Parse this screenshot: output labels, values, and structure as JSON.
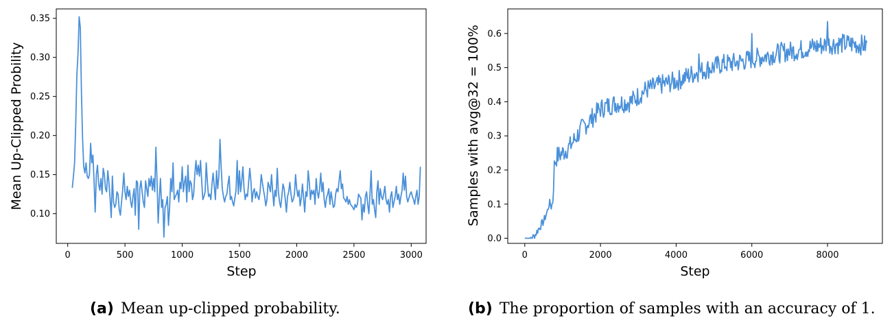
{
  "chart_data": [
    {
      "type": "line",
      "xlabel": "Step",
      "ylabel": "Mean Up-Clipped Probility",
      "xlim": [
        -100,
        3130
      ],
      "ylim": [
        0.062,
        0.362
      ],
      "xticks": [
        0,
        500,
        1000,
        1500,
        2000,
        2500,
        3000
      ],
      "yticks": [
        0.1,
        0.15,
        0.2,
        0.25,
        0.3,
        0.35
      ],
      "ytick_labels": [
        "0.10",
        "0.15",
        "0.20",
        "0.25",
        "0.30",
        "0.35"
      ],
      "series": [
        {
          "color": "#4a90d9",
          "x_start": 40,
          "x_step": 10,
          "y": [
            0.133,
            0.148,
            0.165,
            0.215,
            0.278,
            0.305,
            0.352,
            0.338,
            0.255,
            0.195,
            0.16,
            0.152,
            0.165,
            0.148,
            0.145,
            0.15,
            0.19,
            0.165,
            0.175,
            0.142,
            0.102,
            0.15,
            0.162,
            0.138,
            0.13,
            0.145,
            0.125,
            0.158,
            0.15,
            0.132,
            0.128,
            0.155,
            0.14,
            0.12,
            0.095,
            0.148,
            0.115,
            0.108,
            0.112,
            0.128,
            0.125,
            0.105,
            0.098,
            0.115,
            0.13,
            0.152,
            0.128,
            0.118,
            0.135,
            0.122,
            0.13,
            0.115,
            0.108,
            0.122,
            0.132,
            0.098,
            0.142,
            0.14,
            0.08,
            0.132,
            0.142,
            0.128,
            0.115,
            0.108,
            0.142,
            0.132,
            0.122,
            0.145,
            0.135,
            0.148,
            0.13,
            0.145,
            0.128,
            0.185,
            0.142,
            0.088,
            0.12,
            0.145,
            0.108,
            0.118,
            0.07,
            0.108,
            0.112,
            0.122,
            0.085,
            0.108,
            0.145,
            0.128,
            0.165,
            0.118,
            0.122,
            0.125,
            0.13,
            0.115,
            0.14,
            0.132,
            0.16,
            0.128,
            0.14,
            0.148,
            0.115,
            0.162,
            0.128,
            0.142,
            0.138,
            0.118,
            0.125,
            0.15,
            0.168,
            0.15,
            0.162,
            0.148,
            0.168,
            0.142,
            0.118,
            0.122,
            0.128,
            0.165,
            0.14,
            0.122,
            0.125,
            0.118,
            0.138,
            0.152,
            0.135,
            0.118,
            0.155,
            0.132,
            0.148,
            0.195,
            0.16,
            0.132,
            0.122,
            0.115,
            0.122,
            0.125,
            0.138,
            0.148,
            0.118,
            0.122,
            0.115,
            0.11,
            0.12,
            0.13,
            0.168,
            0.125,
            0.155,
            0.128,
            0.142,
            0.16,
            0.132,
            0.118,
            0.125,
            0.122,
            0.14,
            0.158,
            0.142,
            0.115,
            0.128,
            0.132,
            0.12,
            0.128,
            0.122,
            0.118,
            0.128,
            0.15,
            0.14,
            0.13,
            0.122,
            0.11,
            0.118,
            0.14,
            0.135,
            0.128,
            0.15,
            0.128,
            0.11,
            0.13,
            0.122,
            0.158,
            0.128,
            0.115,
            0.108,
            0.122,
            0.138,
            0.132,
            0.118,
            0.102,
            0.122,
            0.128,
            0.14,
            0.125,
            0.115,
            0.118,
            0.125,
            0.15,
            0.132,
            0.122,
            0.13,
            0.11,
            0.12,
            0.138,
            0.12,
            0.102,
            0.128,
            0.122,
            0.155,
            0.14,
            0.118,
            0.13,
            0.125,
            0.13,
            0.112,
            0.145,
            0.128,
            0.12,
            0.132,
            0.152,
            0.128,
            0.14,
            0.118,
            0.108,
            0.12,
            0.125,
            0.132,
            0.112,
            0.128,
            0.118,
            0.108,
            0.11,
            0.125,
            0.132,
            0.128,
            0.142,
            0.155,
            0.132,
            0.138,
            0.12,
            0.118,
            0.115,
            0.122,
            0.112,
            0.118,
            0.112,
            0.11,
            0.108,
            0.105,
            0.112,
            0.108,
            0.112,
            0.125,
            0.122,
            0.12,
            0.092,
            0.112,
            0.102,
            0.122,
            0.128,
            0.112,
            0.1,
            0.125,
            0.155,
            0.112,
            0.118,
            0.105,
            0.095,
            0.128,
            0.142,
            0.112,
            0.132,
            0.122,
            0.118,
            0.125,
            0.135,
            0.118,
            0.112,
            0.118,
            0.102,
            0.122,
            0.128,
            0.108,
            0.115,
            0.122,
            0.135,
            0.118,
            0.125,
            0.112,
            0.122,
            0.13,
            0.152,
            0.13,
            0.148,
            0.122,
            0.115,
            0.12,
            0.125,
            0.128,
            0.122,
            0.118,
            0.112,
            0.122,
            0.13,
            0.112,
            0.122,
            0.16
          ]
        }
      ]
    },
    {
      "type": "line",
      "xlabel": "Step",
      "ylabel": "Samples with avg@32 = 100%",
      "xlim": [
        -450,
        9450
      ],
      "ylim": [
        -0.015,
        0.672
      ],
      "xticks": [
        0,
        2000,
        4000,
        6000,
        8000
      ],
      "yticks": [
        0.0,
        0.1,
        0.2,
        0.3,
        0.4,
        0.5,
        0.6
      ],
      "ytick_labels": [
        "0.0",
        "0.1",
        "0.2",
        "0.3",
        "0.4",
        "0.5",
        "0.6"
      ],
      "series": [
        {
          "color": "#4a90d9",
          "x_start": 0,
          "x_step": 20,
          "y_keypoints": [
            [
              0,
              0.0
            ],
            [
              150,
              0.0
            ],
            [
              250,
              0.005
            ],
            [
              350,
              0.025
            ],
            [
              500,
              0.05
            ],
            [
              600,
              0.08
            ],
            [
              650,
              0.105
            ],
            [
              700,
              0.092
            ],
            [
              750,
              0.112
            ],
            [
              780,
              0.22
            ],
            [
              850,
              0.24
            ],
            [
              1000,
              0.25
            ],
            [
              1200,
              0.27
            ],
            [
              1500,
              0.32
            ],
            [
              1800,
              0.355
            ],
            [
              2000,
              0.38
            ],
            [
              2400,
              0.395
            ],
            [
              2800,
              0.4
            ],
            [
              3200,
              0.435
            ],
            [
              3600,
              0.45
            ],
            [
              4000,
              0.46
            ],
            [
              4400,
              0.48
            ],
            [
              4800,
              0.495
            ],
            [
              5200,
              0.51
            ],
            [
              5600,
              0.515
            ],
            [
              6000,
              0.525
            ],
            [
              6400,
              0.535
            ],
            [
              6800,
              0.545
            ],
            [
              7200,
              0.55
            ],
            [
              7600,
              0.56
            ],
            [
              8000,
              0.568
            ],
            [
              8400,
              0.57
            ],
            [
              8800,
              0.568
            ],
            [
              9050,
              0.565
            ]
          ],
          "noise_amplitude": 0.03,
          "spikes": [
            [
              8000,
              0.635
            ],
            [
              8650,
              0.62
            ],
            [
              6000,
              0.6
            ],
            [
              7050,
              0.595
            ],
            [
              3250,
              0.485
            ],
            [
              4600,
              0.54
            ],
            [
              1850,
              0.4
            ]
          ]
        }
      ]
    }
  ],
  "captions": {
    "a": {
      "tag": "(a)",
      "text": "Mean up-clipped probability."
    },
    "b": {
      "tag": "(b)",
      "text": "The proportion of samples with an accuracy of 1."
    }
  }
}
